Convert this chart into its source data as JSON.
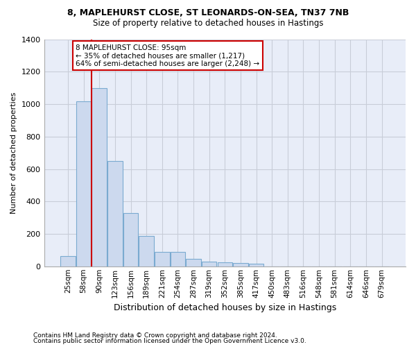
{
  "title_line1": "8, MAPLEHURST CLOSE, ST LEONARDS-ON-SEA, TN37 7NB",
  "title_line2": "Size of property relative to detached houses in Hastings",
  "xlabel": "Distribution of detached houses by size in Hastings",
  "ylabel": "Number of detached properties",
  "annotation_line1": "8 MAPLEHURST CLOSE: 95sqm",
  "annotation_line2": "← 35% of detached houses are smaller (1,217)",
  "annotation_line3": "64% of semi-detached houses are larger (2,248) →",
  "footer_line1": "Contains HM Land Registry data © Crown copyright and database right 2024.",
  "footer_line2": "Contains public sector information licensed under the Open Government Licence v3.0.",
  "bar_color": "#ccd9ee",
  "bar_edge_color": "#7aaad0",
  "vline_color": "#cc0000",
  "plot_bg_color": "#e8edf8",
  "fig_bg_color": "#ffffff",
  "annotation_box_color": "#ffffff",
  "annotation_box_edge_color": "#cc0000",
  "grid_color": "#c8cdd8",
  "categories": [
    "25sqm",
    "58sqm",
    "90sqm",
    "123sqm",
    "156sqm",
    "189sqm",
    "221sqm",
    "254sqm",
    "287sqm",
    "319sqm",
    "352sqm",
    "385sqm",
    "417sqm",
    "450sqm",
    "483sqm",
    "516sqm",
    "548sqm",
    "581sqm",
    "614sqm",
    "646sqm",
    "679sqm"
  ],
  "values": [
    63,
    1017,
    1100,
    648,
    328,
    187,
    88,
    88,
    44,
    30,
    25,
    20,
    15,
    0,
    0,
    0,
    0,
    0,
    0,
    0,
    0
  ],
  "vline_bar_index": 2,
  "ylim": [
    0,
    1400
  ],
  "yticks": [
    0,
    200,
    400,
    600,
    800,
    1000,
    1200,
    1400
  ]
}
